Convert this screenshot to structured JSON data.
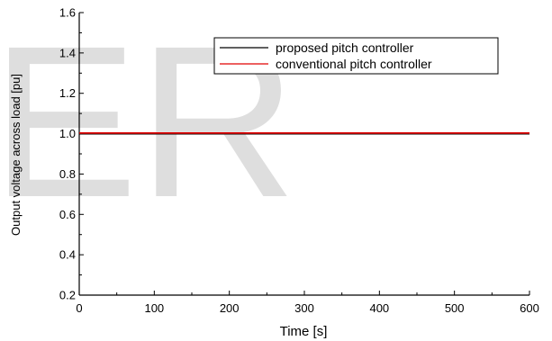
{
  "watermark": "ER",
  "chart_data": {
    "type": "line",
    "title": "",
    "xlabel": "Time [s]",
    "ylabel": "Output voltage across load [pu]",
    "xlim": [
      0,
      600
    ],
    "ylim": [
      0.2,
      1.6
    ],
    "xticks": [
      0,
      100,
      200,
      300,
      400,
      500,
      600
    ],
    "yticks": [
      0.2,
      0.4,
      0.6,
      0.8,
      1.0,
      1.2,
      1.4,
      1.6
    ],
    "ytick_labels": [
      "0.2",
      "0.4",
      "0.6",
      "0.8",
      "1.0",
      "1.2",
      "1.4",
      "1.6"
    ],
    "grid": false,
    "legend_position": "top-right",
    "series": [
      {
        "name": "proposed pitch controller",
        "color": "#000000",
        "x": [
          0,
          600
        ],
        "y": [
          1.0,
          1.0
        ]
      },
      {
        "name": "conventional pitch controller",
        "color": "#e00000",
        "x": [
          0,
          600
        ],
        "y": [
          1.003,
          1.003
        ]
      }
    ]
  }
}
